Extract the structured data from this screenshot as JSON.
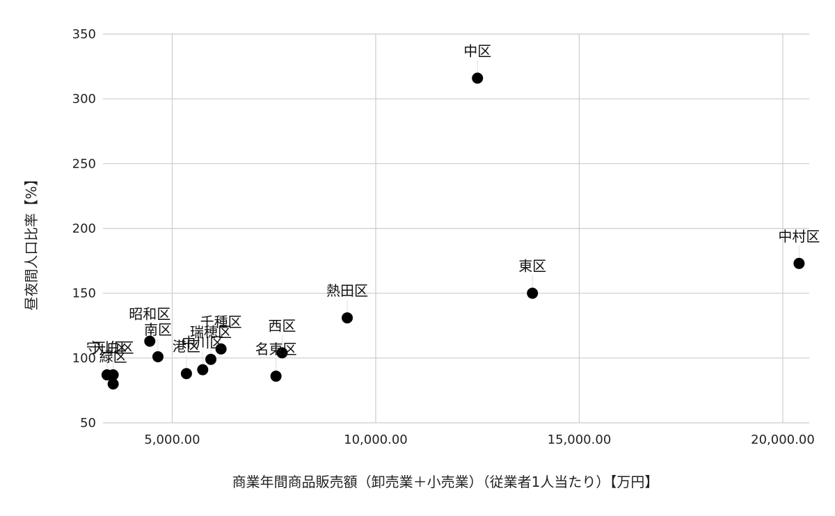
{
  "chart_data": {
    "type": "scatter",
    "xlabel": "商業年間商品販売額（卸売業＋小売業）（従業者1人当たり）【万円】",
    "ylabel": "昼夜間人口比率【%】",
    "xlim": [
      3300,
      20650
    ],
    "ylim": [
      50,
      350
    ],
    "xticks": [
      5000,
      10000,
      15000,
      20000
    ],
    "xtick_labels": [
      "5,000.00",
      "10,000.00",
      "15,000.00",
      "20,000.00"
    ],
    "yticks": [
      50,
      100,
      150,
      200,
      250,
      300,
      350
    ],
    "grid": true,
    "marker_color": "#000000",
    "points": [
      {
        "label": "中区",
        "x": 12500,
        "y": 316
      },
      {
        "label": "中村区",
        "x": 20400,
        "y": 173
      },
      {
        "label": "東区",
        "x": 13850,
        "y": 150
      },
      {
        "label": "熱田区",
        "x": 9300,
        "y": 131
      },
      {
        "label": "西区",
        "x": 7700,
        "y": 104
      },
      {
        "label": "名東区",
        "x": 7550,
        "y": 86
      },
      {
        "label": "千種区",
        "x": 6200,
        "y": 107
      },
      {
        "label": "瑞穂区",
        "x": 5950,
        "y": 99
      },
      {
        "label": "中川区",
        "x": 5750,
        "y": 91
      },
      {
        "label": "港区",
        "x": 5350,
        "y": 88
      },
      {
        "label": "昭和区",
        "x": 4450,
        "y": 113
      },
      {
        "label": "南区",
        "x": 4650,
        "y": 101
      },
      {
        "label": "天白区",
        "x": 3550,
        "y": 87
      },
      {
        "label": "緑区",
        "x": 3550,
        "y": 80
      },
      {
        "label": "守山区",
        "x": 3400,
        "y": 87
      }
    ]
  }
}
